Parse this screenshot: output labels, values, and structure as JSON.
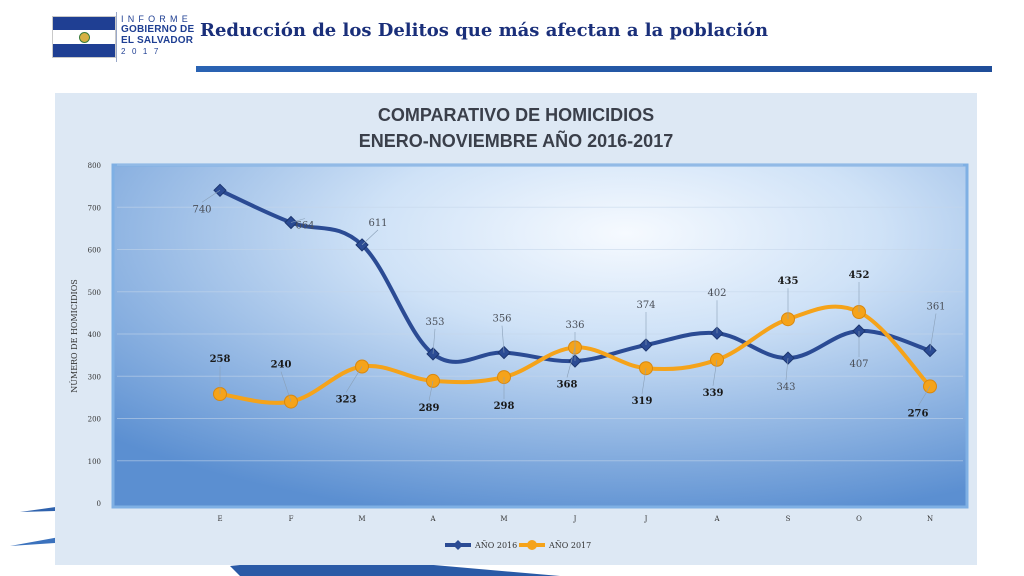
{
  "header": {
    "brand_line1": "INFORME",
    "brand_line2": "GOBIERNO DE",
    "brand_line3": "EL SALVADOR",
    "brand_line4": "2017",
    "title": "Reducción de los Delitos que más afectan a la población"
  },
  "colors": {
    "series_2016": "#2b4b94",
    "series_2017": "#f5a31a",
    "plot_outer": "#5b8fd1",
    "plot_center": "#f3f8fe",
    "title_text": "#3a3f4a"
  },
  "chart_data": {
    "type": "line",
    "title": "COMPARATIVO DE HOMICIDIOS",
    "subtitle": "ENERO-NOVIEMBRE AÑO 2016-2017",
    "xlabel": "",
    "ylabel": "NÚMERO DE HOMICIDIOS",
    "categories": [
      "E",
      "F",
      "M",
      "A",
      "M",
      "J",
      "J",
      "A",
      "S",
      "O",
      "N"
    ],
    "ylim": [
      0,
      800
    ],
    "yticks": [
      "0",
      "100",
      "200",
      "300",
      "400",
      "500",
      "600",
      "700",
      "800"
    ],
    "grid": true,
    "legend_position": "bottom-center",
    "series": [
      {
        "name": "AÑO 2016",
        "marker": "diamond",
        "values": [
          740,
          664,
          611,
          353,
          356,
          336,
          374,
          402,
          343,
          407,
          361
        ],
        "labels": [
          "740",
          "664",
          "611",
          "353",
          "356",
          "336",
          "374",
          "402",
          "343",
          "407",
          "361"
        ]
      },
      {
        "name": "AÑO 2017",
        "marker": "circle",
        "values": [
          258,
          240,
          323,
          289,
          298,
          368,
          319,
          339,
          435,
          452,
          276
        ],
        "labels": [
          "258",
          "240",
          "323",
          "289",
          "298",
          "368",
          "319",
          "339",
          "435",
          "452",
          "276"
        ]
      }
    ]
  }
}
